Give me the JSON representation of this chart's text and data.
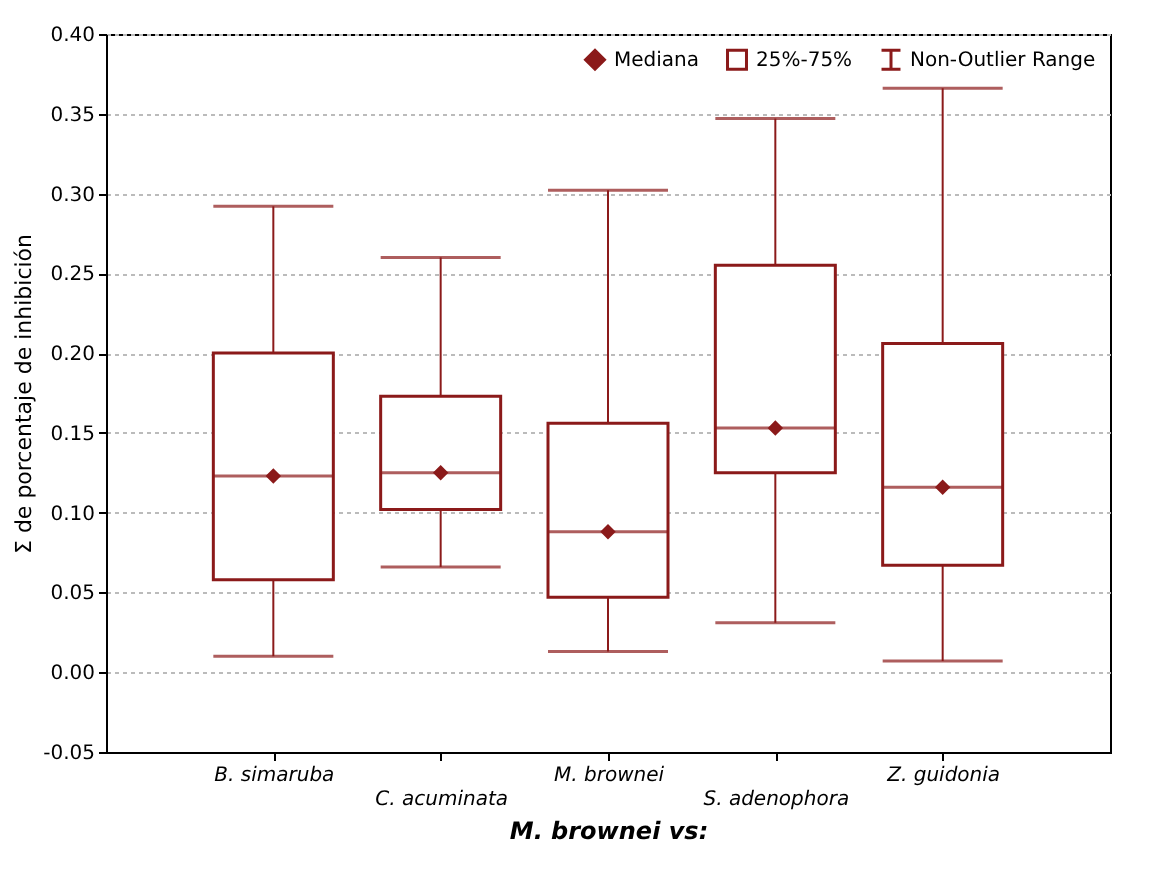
{
  "chart_data": {
    "type": "box",
    "xlabel": "M. brownei vs:",
    "ylabel": "Σ de porcentaje de inhibición",
    "categories": [
      "B. simaruba",
      "C. acuminata",
      "M. brownei",
      "S. adenophora",
      "Z. guidonia"
    ],
    "series": [
      {
        "color": "#8b1a1a",
        "boxes": [
          {
            "low": 0.01,
            "q1": 0.058,
            "median": 0.123,
            "q3": 0.2,
            "high": 0.292
          },
          {
            "low": 0.066,
            "q1": 0.102,
            "median": 0.125,
            "q3": 0.173,
            "high": 0.26
          },
          {
            "low": 0.013,
            "q1": 0.047,
            "median": 0.088,
            "q3": 0.156,
            "high": 0.302
          },
          {
            "low": 0.031,
            "q1": 0.125,
            "median": 0.153,
            "q3": 0.255,
            "high": 0.347
          },
          {
            "low": 0.007,
            "q1": 0.067,
            "median": 0.116,
            "q3": 0.206,
            "high": 0.366
          }
        ]
      },
      {
        "name": "Mediana",
        "type": "scatter",
        "color": "#8b1a1a",
        "x": [
          "B. simaruba",
          "C. acuminata",
          "M. brownei",
          "S. adenophora",
          "Z. guidonia"
        ],
        "values": [
          0.123,
          0.125,
          0.088,
          0.153,
          0.116
        ]
      }
    ],
    "ylim": [
      -0.05,
      0.4
    ],
    "yticks": [
      {
        "value": -0.05,
        "label": "-0.05"
      },
      {
        "value": 0,
        "label": "0.00"
      },
      {
        "value": 0.05,
        "label": "0.05"
      },
      {
        "value": 0.1,
        "label": "0.10"
      },
      {
        "value": 0.15,
        "label": "0.15"
      },
      {
        "value": 0.2,
        "label": "0.20"
      },
      {
        "value": 0.25,
        "label": "0.25"
      },
      {
        "value": 0.3,
        "label": "0.30"
      },
      {
        "value": 0.35,
        "label": "0.35"
      },
      {
        "value": 0.4,
        "label": "0.40"
      }
    ],
    "grid": "y",
    "legend": "top right",
    "marker": "diamond",
    "annotations": [
      "25%-75%",
      "Non-Outlier Range"
    ]
  }
}
